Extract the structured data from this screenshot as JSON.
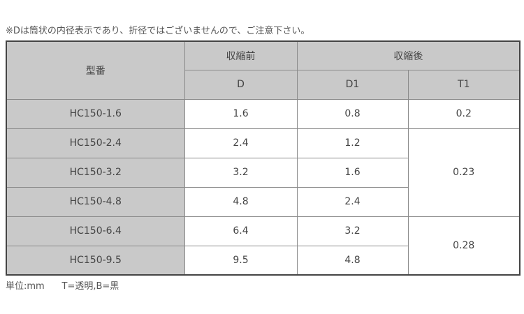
{
  "note": "※Dは筒状の内径表示であり、折径ではございませんので、ご注意下さい。",
  "table": {
    "header": {
      "model": "型番",
      "before": "収縮前",
      "after": "収縮後",
      "d": "D",
      "d1": "D1",
      "t1": "T1"
    },
    "rows": [
      {
        "model": "HC150-1.6",
        "d": "1.6",
        "d1": "0.8"
      },
      {
        "model": "HC150-2.4",
        "d": "2.4",
        "d1": "1.2"
      },
      {
        "model": "HC150-3.2",
        "d": "3.2",
        "d1": "1.6"
      },
      {
        "model": "HC150-4.8",
        "d": "4.8",
        "d1": "2.4"
      },
      {
        "model": "HC150-6.4",
        "d": "6.4",
        "d1": "3.2"
      },
      {
        "model": "HC150-9.5",
        "d": "9.5",
        "d1": "4.8"
      }
    ],
    "t1_groups": [
      "0.2",
      "0.23",
      "0.28"
    ]
  },
  "footer": {
    "units": "単位:mm",
    "colors": "T=透明,B=黒"
  }
}
